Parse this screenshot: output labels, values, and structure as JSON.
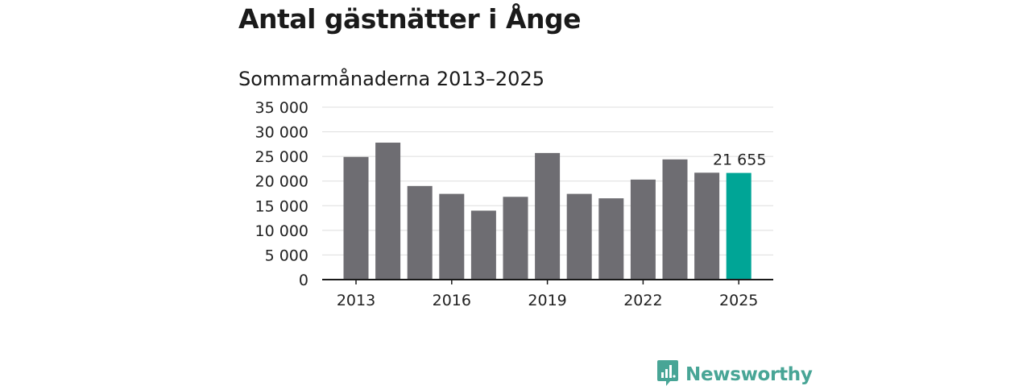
{
  "header": {
    "title": "Antal gästnätter i Ånge",
    "subtitle": "Sommarmånaderna 2013–2025"
  },
  "chart_data": {
    "type": "bar",
    "categories": [
      "2013",
      "2014",
      "2015",
      "2016",
      "2017",
      "2018",
      "2019",
      "2020",
      "2021",
      "2022",
      "2023",
      "2024",
      "2025"
    ],
    "values": [
      24900,
      27800,
      19000,
      17400,
      14000,
      16800,
      25700,
      17400,
      16500,
      20300,
      24400,
      21700,
      21655
    ],
    "ylim": [
      0,
      35000
    ],
    "yticks": [
      0,
      5000,
      10000,
      15000,
      20000,
      25000,
      30000,
      35000
    ],
    "ytick_labels": [
      "0",
      "5 000",
      "10 000",
      "15 000",
      "20 000",
      "25 000",
      "30 000",
      "35 000"
    ],
    "xtick_labels": [
      "2013",
      "2016",
      "2019",
      "2022",
      "2025"
    ],
    "highlight_index": 12,
    "data_labels": [
      {
        "index": 12,
        "text": "21 655"
      }
    ],
    "grid": true,
    "colors": {
      "bar": "#6e6d72",
      "highlight": "#00a596",
      "grid": "#dddddd",
      "axis": "#1a1a1a"
    }
  },
  "branding": {
    "name": "Newsworthy",
    "icon": "newsworthy-logo-icon",
    "color": "#48a596"
  }
}
